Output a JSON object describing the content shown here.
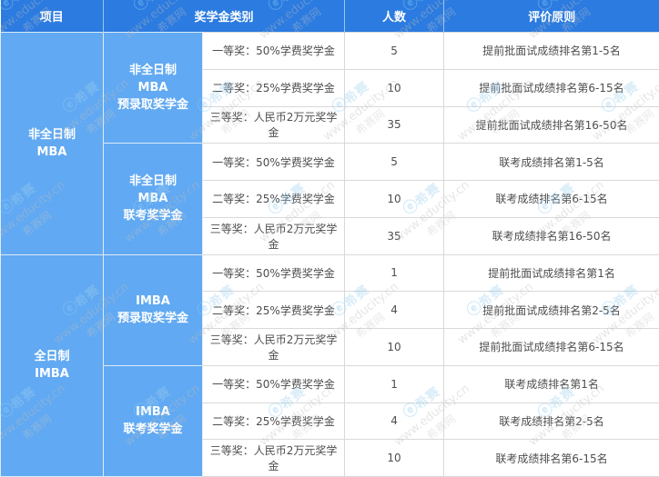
{
  "header": {
    "col_project": "项目",
    "col_category": "奖学金类别",
    "col_count": "人数",
    "col_principle": "评价原则"
  },
  "groups": [
    {
      "project": "非全日制\nMBA",
      "subgroups": [
        {
          "category": "非全日制\nMBA\n预录取奖学金",
          "rows": [
            {
              "award": "一等奖：50%学费奖学金",
              "count": "5",
              "principle": "提前批面试成绩排名第1-5名"
            },
            {
              "award": "二等奖：25%学费奖学金",
              "count": "10",
              "principle": "提前批面试成绩排名第6-15名"
            },
            {
              "award": "三等奖：人民币2万元奖学金",
              "count": "35",
              "principle": "提前批面试成绩排名第16-50名"
            }
          ]
        },
        {
          "category": "非全日制\nMBA\n联考奖学金",
          "rows": [
            {
              "award": "一等奖：50%学费奖学金",
              "count": "5",
              "principle": "联考成绩排名第1-5名"
            },
            {
              "award": "二等奖：25%学费奖学金",
              "count": "10",
              "principle": "联考成绩排名第6-15名"
            },
            {
              "award": "三等奖：人民币2万元奖学金",
              "count": "35",
              "principle": "联考成绩排名第16-50名"
            }
          ]
        }
      ]
    },
    {
      "project": "全日制\nIMBA",
      "subgroups": [
        {
          "category": "IMBA\n预录取奖学金",
          "rows": [
            {
              "award": "一等奖：50%学费奖学金",
              "count": "1",
              "principle": "提前批面试成绩排名第1名"
            },
            {
              "award": "二等奖：25%学费奖学金",
              "count": "4",
              "principle": "提前批面试成绩排名第2-5名"
            },
            {
              "award": "三等奖：人民币2万元奖学金",
              "count": "10",
              "principle": "提前批面试成绩排名第6-15名"
            }
          ]
        },
        {
          "category": "IMBA\n联考奖学金",
          "rows": [
            {
              "award": "一等奖：50%学费奖学金",
              "count": "1",
              "principle": "联考成绩排名第1名"
            },
            {
              "award": "二等奖：25%学费奖学金",
              "count": "4",
              "principle": "联考成绩排名第2-5名"
            },
            {
              "award": "三等奖：人民币2万元奖学金",
              "count": "10",
              "principle": "联考成绩排名第6-15名"
            }
          ]
        }
      ]
    }
  ],
  "watermark": {
    "logo_glyph": "ⓔ",
    "brand": "希赛",
    "url_text": "www.educity.cn",
    "site_text": "希赛网"
  },
  "colors": {
    "header_bg": "#2b7be0",
    "group_cell_bg": "#61a9f2",
    "border": "#d9d9d9",
    "body_text": "#4e4e4e"
  }
}
